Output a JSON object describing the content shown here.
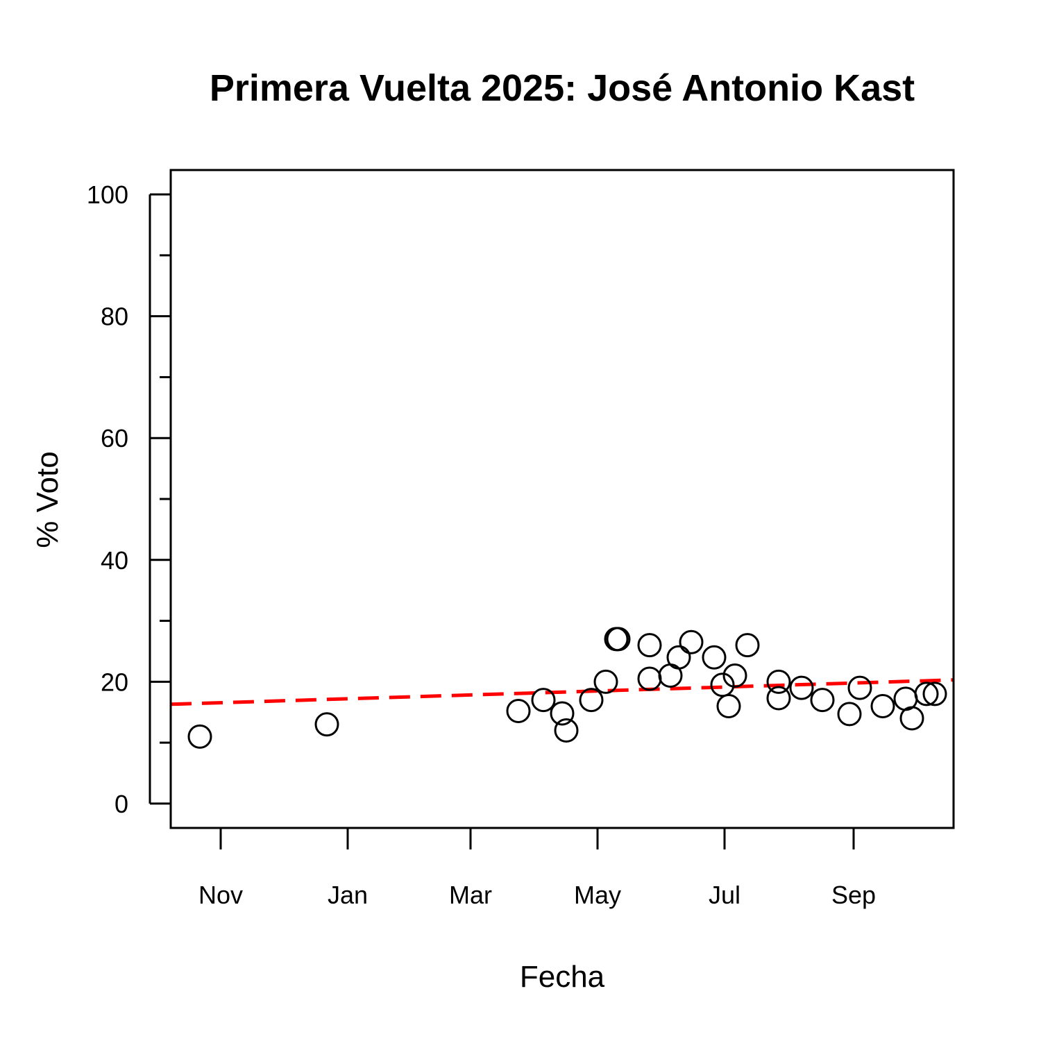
{
  "chart_data": {
    "type": "scatter",
    "title": "Primera Vuelta 2025: José Antonio Kast",
    "xlabel": "Fecha",
    "ylabel": "% Voto",
    "xlim": [
      "2024-10-08",
      "2025-10-19"
    ],
    "ylim": [
      -4,
      104
    ],
    "yticks": [
      0,
      20,
      40,
      60,
      80,
      100
    ],
    "yminor_ticks": [
      10,
      30,
      50,
      70,
      90
    ],
    "xticks": [
      {
        "date": "2024-11-01",
        "label": "Nov"
      },
      {
        "date": "2025-01-01",
        "label": "Jan"
      },
      {
        "date": "2025-03-01",
        "label": "Mar"
      },
      {
        "date": "2025-05-01",
        "label": "May"
      },
      {
        "date": "2025-07-01",
        "label": "Jul"
      },
      {
        "date": "2025-09-01",
        "label": "Sep"
      }
    ],
    "grid": false,
    "points": [
      {
        "x": "2024-10-22",
        "y": 11
      },
      {
        "x": "2024-12-22",
        "y": 13
      },
      {
        "x": "2025-03-24",
        "y": 15.2
      },
      {
        "x": "2025-04-05",
        "y": 17
      },
      {
        "x": "2025-04-14",
        "y": 14.8
      },
      {
        "x": "2025-04-16",
        "y": 12
      },
      {
        "x": "2025-04-28",
        "y": 17
      },
      {
        "x": "2025-05-05",
        "y": 20
      },
      {
        "x": "2025-05-10",
        "y": 27
      },
      {
        "x": "2025-05-11",
        "y": 27
      },
      {
        "x": "2025-05-26",
        "y": 26
      },
      {
        "x": "2025-05-26",
        "y": 20.5
      },
      {
        "x": "2025-06-05",
        "y": 21
      },
      {
        "x": "2025-06-09",
        "y": 24
      },
      {
        "x": "2025-06-15",
        "y": 26.5
      },
      {
        "x": "2025-06-26",
        "y": 24
      },
      {
        "x": "2025-06-30",
        "y": 19.5
      },
      {
        "x": "2025-07-03",
        "y": 16
      },
      {
        "x": "2025-07-06",
        "y": 21
      },
      {
        "x": "2025-07-12",
        "y": 26
      },
      {
        "x": "2025-07-27",
        "y": 20
      },
      {
        "x": "2025-07-27",
        "y": 17.3
      },
      {
        "x": "2025-08-07",
        "y": 19
      },
      {
        "x": "2025-08-17",
        "y": 17
      },
      {
        "x": "2025-08-30",
        "y": 14.7
      },
      {
        "x": "2025-09-04",
        "y": 19
      },
      {
        "x": "2025-09-15",
        "y": 16
      },
      {
        "x": "2025-09-26",
        "y": 17.2
      },
      {
        "x": "2025-09-29",
        "y": 14
      },
      {
        "x": "2025-10-06",
        "y": 18
      },
      {
        "x": "2025-10-10",
        "y": 18
      }
    ],
    "trend_line": {
      "style": "dashed",
      "color": "#ff0000",
      "start": {
        "x": "2024-10-08",
        "y": 16.3
      },
      "end": {
        "x": "2025-10-19",
        "y": 20.3
      }
    }
  }
}
